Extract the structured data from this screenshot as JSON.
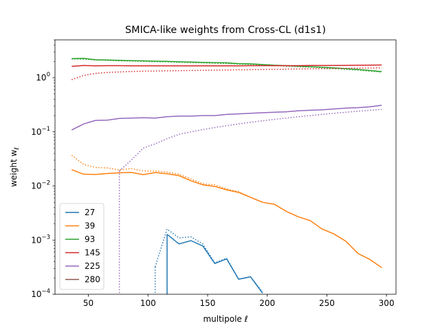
{
  "chart_data": {
    "type": "line",
    "title": "SMICA-like weights from Cross-CL (d1s1)",
    "xlabel": "multipole ℓ",
    "ylabel": "weight w",
    "ylabel_subscript": "ℓ",
    "xlim": [
      22,
      308
    ],
    "ylim": [
      0.0001,
      5
    ],
    "yscale": "log",
    "x_ticks": [
      50,
      100,
      150,
      200,
      250,
      300
    ],
    "y_ticks": [
      {
        "value": 0.0001,
        "base": "10",
        "exp": "−4"
      },
      {
        "value": 0.001,
        "base": "10",
        "exp": "−3"
      },
      {
        "value": 0.01,
        "base": "10",
        "exp": "−2"
      },
      {
        "value": 0.1,
        "base": "10",
        "exp": "−1"
      },
      {
        "value": 1,
        "base": "10",
        "exp": "0"
      }
    ],
    "legend_position": "lower-left",
    "x": [
      36,
      46,
      56,
      66,
      76,
      86,
      96,
      106,
      116,
      126,
      136,
      146,
      156,
      166,
      176,
      186,
      196,
      206,
      216,
      226,
      236,
      246,
      256,
      266,
      276,
      286,
      296
    ],
    "series": [
      {
        "name": "27",
        "color": "#1f77b4",
        "solid": [
          null,
          null,
          null,
          null,
          null,
          null,
          null,
          null,
          0.00128,
          0.00085,
          0.00098,
          0.00078,
          0.00037,
          0.00045,
          0.00019,
          0.00021,
          0.000105,
          null,
          null,
          null,
          null,
          null,
          null,
          null,
          null,
          null,
          null
        ],
        "dotted": [
          null,
          null,
          null,
          null,
          null,
          null,
          null,
          0.00032,
          0.0016,
          0.0011,
          0.00115,
          0.00085,
          0.00038,
          0.00046,
          0.00019,
          0.00021,
          0.00011,
          null,
          null,
          null,
          null,
          null,
          null,
          null,
          null,
          null,
          null
        ],
        "drop_to_floor": [
          {
            "x": 116,
            "style": "solid"
          },
          {
            "x": 106,
            "style": "dotted"
          }
        ]
      },
      {
        "name": "39",
        "color": "#ff7f0e",
        "solid": [
          0.02,
          0.0165,
          0.0163,
          0.017,
          0.0175,
          0.0178,
          0.0162,
          0.0177,
          0.0168,
          0.0155,
          0.0125,
          0.0105,
          0.0098,
          0.0085,
          0.0076,
          0.0062,
          0.005,
          0.0046,
          0.0034,
          0.0027,
          0.0023,
          0.0016,
          0.0013,
          0.00095,
          0.00057,
          0.00044,
          0.00031
        ],
        "dotted": [
          0.037,
          0.025,
          0.022,
          0.0215,
          0.0198,
          0.021,
          0.019,
          0.019,
          0.018,
          0.0165,
          0.0135,
          0.011,
          0.0105,
          0.0088,
          0.0078,
          0.0062,
          0.005,
          null,
          null,
          null,
          null,
          null,
          null,
          null,
          null,
          null,
          null
        ]
      },
      {
        "name": "93",
        "color": "#2ca02c",
        "solid": [
          2.25,
          2.28,
          2.15,
          2.13,
          2.1,
          2.07,
          2.05,
          2.02,
          2.0,
          1.97,
          1.95,
          1.92,
          1.9,
          1.88,
          1.82,
          1.8,
          1.75,
          1.7,
          1.67,
          1.63,
          1.6,
          1.56,
          1.52,
          1.47,
          1.42,
          1.36,
          1.3
        ],
        "dotted": [
          2.22,
          2.2,
          2.12,
          2.1,
          2.05,
          2.03,
          2.0,
          1.98,
          1.96,
          1.93,
          1.9,
          1.88,
          1.85,
          1.83,
          1.78,
          1.76,
          1.72,
          1.68,
          1.63,
          1.6,
          1.57,
          1.53,
          1.48,
          1.43,
          1.38,
          1.32,
          1.27
        ]
      },
      {
        "name": "145",
        "color": "#d62728",
        "solid": [
          1.62,
          1.68,
          1.66,
          1.67,
          1.67,
          1.66,
          1.66,
          1.66,
          1.66,
          1.66,
          1.66,
          1.66,
          1.66,
          1.66,
          1.66,
          1.67,
          1.67,
          1.67,
          1.67,
          1.67,
          1.68,
          1.68,
          1.68,
          1.69,
          1.7,
          1.71,
          1.72
        ],
        "dotted": [
          0.92,
          1.1,
          1.2,
          1.25,
          1.28,
          1.3,
          1.32,
          1.33,
          1.34,
          1.35,
          1.36,
          1.37,
          1.38,
          1.39,
          1.4,
          1.41,
          1.42,
          1.43,
          1.44,
          1.45,
          1.46,
          1.47,
          1.48,
          1.49,
          1.5,
          1.51,
          1.52
        ]
      },
      {
        "name": "225",
        "color": "#9467bd",
        "solid": [
          0.108,
          0.14,
          0.163,
          0.165,
          0.177,
          0.18,
          0.182,
          0.18,
          0.19,
          0.195,
          0.195,
          0.2,
          0.2,
          0.21,
          0.215,
          0.22,
          0.225,
          0.23,
          0.235,
          0.245,
          0.25,
          0.255,
          0.265,
          0.275,
          0.28,
          0.29,
          0.31
        ],
        "dotted": [
          null,
          null,
          null,
          null,
          0.019,
          0.03,
          0.05,
          0.06,
          0.075,
          0.09,
          0.1,
          0.11,
          0.12,
          0.13,
          0.14,
          0.15,
          0.16,
          0.17,
          0.18,
          0.19,
          0.2,
          0.21,
          0.22,
          0.23,
          0.24,
          0.25,
          0.26
        ],
        "drop_to_floor": [
          {
            "x": 76,
            "style": "dotted"
          }
        ]
      },
      {
        "name": "280",
        "color": "#8c564b",
        "solid": [
          null,
          null,
          null,
          null,
          null,
          null,
          null,
          null,
          null,
          null,
          null,
          null,
          null,
          null,
          null,
          null,
          null,
          null,
          null,
          null,
          null,
          null,
          null,
          null,
          null,
          null,
          null
        ],
        "dotted": [
          null,
          null,
          null,
          null,
          null,
          null,
          null,
          null,
          null,
          null,
          null,
          null,
          null,
          null,
          null,
          null,
          null,
          null,
          null,
          null,
          null,
          null,
          null,
          null,
          null,
          null,
          null
        ]
      }
    ]
  }
}
